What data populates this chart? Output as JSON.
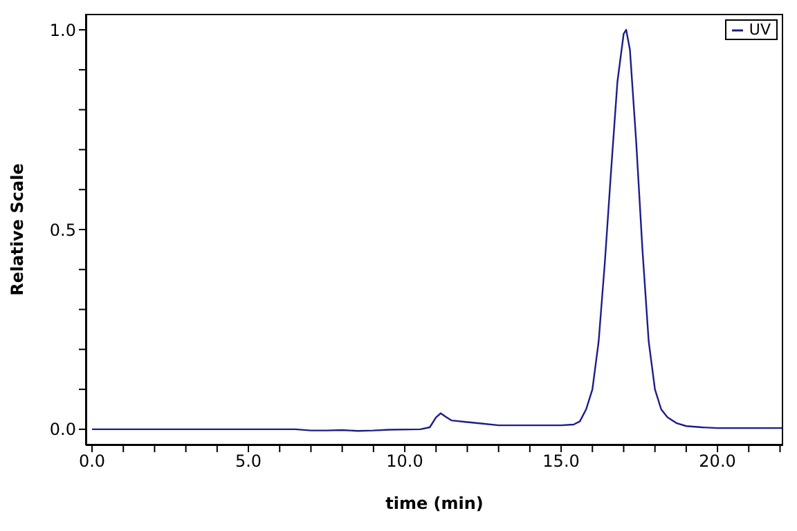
{
  "chart_data": {
    "type": "line",
    "xlabel": "time (min)",
    "ylabel": "Relative Scale",
    "xlim": [
      -0.2,
      22.1
    ],
    "ylim": [
      -0.04,
      1.04
    ],
    "xticks": [
      {
        "value": 0,
        "label": "0.0"
      },
      {
        "value": 1,
        "label": null
      },
      {
        "value": 2,
        "label": null
      },
      {
        "value": 3,
        "label": null
      },
      {
        "value": 4,
        "label": null
      },
      {
        "value": 5,
        "label": "5.0"
      },
      {
        "value": 6,
        "label": null
      },
      {
        "value": 7,
        "label": null
      },
      {
        "value": 8,
        "label": null
      },
      {
        "value": 9,
        "label": null
      },
      {
        "value": 10,
        "label": "10.0"
      },
      {
        "value": 11,
        "label": null
      },
      {
        "value": 12,
        "label": null
      },
      {
        "value": 13,
        "label": null
      },
      {
        "value": 14,
        "label": null
      },
      {
        "value": 15,
        "label": "15.0"
      },
      {
        "value": 16,
        "label": null
      },
      {
        "value": 17,
        "label": null
      },
      {
        "value": 18,
        "label": null
      },
      {
        "value": 19,
        "label": null
      },
      {
        "value": 20,
        "label": "20.0"
      },
      {
        "value": 21,
        "label": null
      },
      {
        "value": 22,
        "label": null
      }
    ],
    "yticks": [
      {
        "value": 0,
        "label": "0.0"
      },
      {
        "value": 0.1,
        "label": null
      },
      {
        "value": 0.2,
        "label": null
      },
      {
        "value": 0.3,
        "label": null
      },
      {
        "value": 0.4,
        "label": null
      },
      {
        "value": 0.5,
        "label": "0.5"
      },
      {
        "value": 0.6,
        "label": null
      },
      {
        "value": 0.7,
        "label": null
      },
      {
        "value": 0.8,
        "label": null
      },
      {
        "value": 0.9,
        "label": null
      },
      {
        "value": 1,
        "label": "1.0"
      }
    ],
    "grid": false,
    "legend": "top right",
    "marker": "none",
    "line_style": "solid",
    "series": [
      {
        "name": "UV",
        "color": "#1c1c8c",
        "x": [
          0,
          6.5,
          7.0,
          7.5,
          8.0,
          8.5,
          9.0,
          9.5,
          10.5,
          10.8,
          11.0,
          11.15,
          11.3,
          11.5,
          12.0,
          12.5,
          13.0,
          14.0,
          15.0,
          15.4,
          15.6,
          15.8,
          16.0,
          16.2,
          16.4,
          16.6,
          16.8,
          17.0,
          17.08,
          17.2,
          17.4,
          17.6,
          17.8,
          18.0,
          18.2,
          18.4,
          18.7,
          19.0,
          19.5,
          20.0,
          21.0,
          22.1
        ],
        "values": [
          0,
          0,
          -0.003,
          -0.003,
          -0.002,
          -0.004,
          -0.003,
          -0.001,
          0,
          0.005,
          0.03,
          0.04,
          0.032,
          0.022,
          0.018,
          0.014,
          0.01,
          0.01,
          0.01,
          0.012,
          0.02,
          0.05,
          0.1,
          0.22,
          0.42,
          0.65,
          0.87,
          0.99,
          1.0,
          0.95,
          0.72,
          0.45,
          0.22,
          0.1,
          0.05,
          0.03,
          0.015,
          0.008,
          0.005,
          0.003,
          0.003,
          0.003
        ]
      }
    ]
  }
}
